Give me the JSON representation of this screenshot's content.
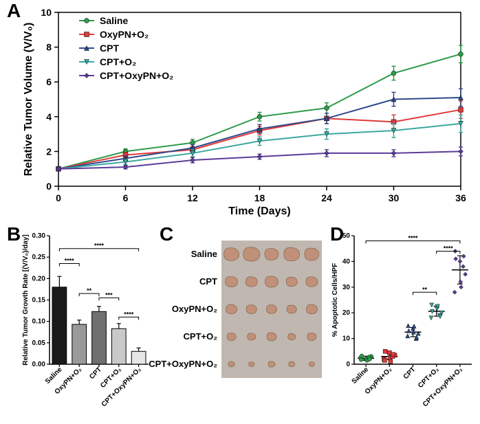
{
  "panelA": {
    "label": "A",
    "type": "line",
    "xlabel": "Time (Days)",
    "ylabel": "Relative Tumor Volume (V/V₀)",
    "xlim": [
      0,
      36
    ],
    "xtick_step": 6,
    "ylim": [
      0,
      10
    ],
    "ytick_step": 2,
    "x": [
      0,
      6,
      12,
      18,
      24,
      30,
      36
    ],
    "series": [
      {
        "name": "Saline",
        "color": "#2e9b4a",
        "marker": "circle",
        "y": [
          1.0,
          2.0,
          2.5,
          4.0,
          4.5,
          6.5,
          7.6
        ],
        "err": [
          0.1,
          0.15,
          0.2,
          0.25,
          0.3,
          0.4,
          0.5
        ]
      },
      {
        "name": "OxyPN+O₂",
        "color": "#e03a3a",
        "marker": "square",
        "y": [
          1.0,
          1.8,
          2.1,
          3.2,
          3.9,
          3.7,
          4.4
        ],
        "err": [
          0.1,
          0.15,
          0.2,
          0.25,
          0.3,
          0.4,
          0.5
        ]
      },
      {
        "name": "CPT",
        "color": "#2e4a8a",
        "marker": "triangle-up",
        "y": [
          1.0,
          1.6,
          2.2,
          3.3,
          3.9,
          5.0,
          5.1
        ],
        "err": [
          0.1,
          0.15,
          0.2,
          0.25,
          0.3,
          0.4,
          0.5
        ]
      },
      {
        "name": "CPT+O₂",
        "color": "#3aa8a0",
        "marker": "triangle-down",
        "y": [
          1.0,
          1.4,
          1.9,
          2.6,
          3.0,
          3.2,
          3.6
        ],
        "err": [
          0.1,
          0.15,
          0.2,
          0.25,
          0.3,
          0.4,
          0.5
        ]
      },
      {
        "name": "CPT+OxyPN+O₂",
        "color": "#5a3a9a",
        "marker": "diamond",
        "y": [
          1.0,
          1.1,
          1.5,
          1.7,
          1.9,
          1.9,
          2.0
        ],
        "err": [
          0.1,
          0.1,
          0.15,
          0.15,
          0.2,
          0.2,
          0.25
        ]
      }
    ],
    "marker_size": 7,
    "line_width": 2,
    "axis_fontsize": 16,
    "tick_fontsize": 14,
    "background_color": "#ffffff",
    "axis_color": "#000000"
  },
  "panelB": {
    "label": "B",
    "type": "bar",
    "ylabel": "Relative Tumor Growth Rate [(V/V₀)/day]",
    "ylim": [
      0.0,
      0.3
    ],
    "ytick_step": 0.05,
    "categories": [
      "Saline",
      "OxyPN+O₂",
      "CPT",
      "CPT+O₂",
      "CPT+OxyPN+O₂"
    ],
    "values": [
      0.18,
      0.093,
      0.123,
      0.083,
      0.03
    ],
    "errors": [
      0.025,
      0.01,
      0.012,
      0.012,
      0.008
    ],
    "bar_colors": [
      "#1a1a1a",
      "#9a9a9a",
      "#707070",
      "#c9c9c9",
      "#e6e6e6"
    ],
    "bar_width": 0.72,
    "significance": [
      {
        "from": 0,
        "to": 4,
        "label": "****",
        "h": 0.27
      },
      {
        "from": 0,
        "to": 1,
        "label": "****",
        "h": 0.235
      },
      {
        "from": 1,
        "to": 2,
        "label": "**",
        "h": 0.165
      },
      {
        "from": 2,
        "to": 3,
        "label": "***",
        "h": 0.155
      },
      {
        "from": 3,
        "to": 4,
        "label": "****",
        "h": 0.11
      }
    ],
    "axis_fontsize": 10,
    "background_color": "#ffffff"
  },
  "panelC": {
    "label": "C",
    "type": "infographic",
    "background_color": "#c0b8b0",
    "rows": [
      {
        "label": "Saline",
        "tumor_sizes": [
          22,
          24,
          20,
          23,
          21
        ]
      },
      {
        "label": "CPT",
        "tumor_sizes": [
          18,
          17,
          19,
          16,
          17
        ]
      },
      {
        "label": "OxyPN+O₂",
        "tumor_sizes": [
          16,
          15,
          15,
          14,
          16
        ]
      },
      {
        "label": "CPT+O₂",
        "tumor_sizes": [
          13,
          12,
          14,
          11,
          13
        ]
      },
      {
        "label": "CPT+OxyPN+O₂",
        "tumor_sizes": [
          9,
          8,
          10,
          9,
          8
        ]
      }
    ],
    "tumor_color": "#c09078",
    "label_fontsize": 13
  },
  "panelD": {
    "label": "D",
    "type": "scatter-strip",
    "ylabel": "% Apoptotic Cells/HPF",
    "ylim": [
      0,
      50
    ],
    "ytick_step": 10,
    "categories": [
      "Saline",
      "OxyPN+O₂",
      "CPT",
      "CPT+O₂",
      "CPT+OxyPN+O₂"
    ],
    "groups": [
      {
        "color": "#2e9b4a",
        "marker": "circle",
        "values": [
          2.5,
          2.0,
          3.0,
          1.8,
          2.2,
          2.8,
          3.2,
          1.5,
          2.0
        ],
        "mean": 2.3,
        "err": 0.8
      },
      {
        "color": "#e03a3a",
        "marker": "square",
        "values": [
          2.0,
          4.5,
          3.5,
          1.5,
          2.5,
          3.0,
          5.0,
          1.0,
          3.8
        ],
        "mean": 3.0,
        "err": 1.2
      },
      {
        "color": "#2e4a8a",
        "marker": "triangle-up",
        "values": [
          11.0,
          14.0,
          12.0,
          15.0,
          12.5,
          10.0,
          13.0,
          14.8,
          10.5
        ],
        "mean": 12.5,
        "err": 1.8
      },
      {
        "color": "#3aa8a0",
        "marker": "triangle-down",
        "values": [
          18.0,
          22.0,
          20.0,
          23.0,
          21.5,
          19.0,
          20.5,
          22.5,
          18.5
        ],
        "mean": 20.6,
        "err": 1.9
      },
      {
        "color": "#5a3a9a",
        "marker": "diamond",
        "values": [
          28.0,
          40.0,
          35.0,
          44.0,
          32.0,
          38.0,
          41.0,
          30.0,
          42.0
        ],
        "mean": 36.7,
        "err": 5.5
      }
    ],
    "marker_size": 6,
    "significance": [
      {
        "from": 0,
        "to": 4,
        "label": "****",
        "h": 48
      },
      {
        "from": 2,
        "to": 3,
        "label": "**",
        "h": 28
      },
      {
        "from": 3,
        "to": 4,
        "label": "****",
        "h": 44
      }
    ],
    "axis_fontsize": 10,
    "background_color": "#ffffff"
  }
}
